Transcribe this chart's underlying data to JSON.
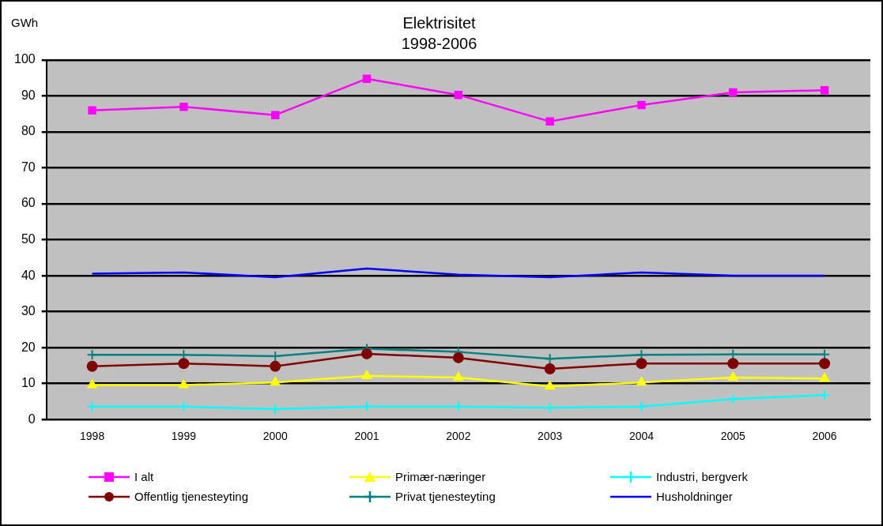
{
  "chart_data": {
    "type": "line",
    "title": "Elektrisitet",
    "subtitle": "1998-2006",
    "ylabel": "GWh",
    "categories": [
      "1998",
      "1999",
      "2000",
      "2001",
      "2002",
      "2003",
      "2004",
      "2005",
      "2006"
    ],
    "series": [
      {
        "name": "I alt",
        "color": "#ff00ff",
        "marker": "square",
        "values": [
          86,
          87,
          84.7,
          94.8,
          90.3,
          82.9,
          87.5,
          91,
          91.6
        ]
      },
      {
        "name": "Primær-næringer",
        "color": "#ffff00",
        "marker": "triangle",
        "values": [
          9.6,
          9.6,
          10.3,
          12.1,
          11.7,
          9.2,
          10.3,
          11.7,
          11.4
        ]
      },
      {
        "name": "Industri, bergverk",
        "color": "#00ffff",
        "marker": "cross",
        "values": [
          3.6,
          3.6,
          2.9,
          3.6,
          3.6,
          3.3,
          3.6,
          5.7,
          6.8
        ]
      },
      {
        "name": "Offentlig tjenesteyting",
        "color": "#800000",
        "marker": "circle",
        "values": [
          14.8,
          15.6,
          14.8,
          18.3,
          17.2,
          14.1,
          15.6,
          15.6,
          15.6
        ]
      },
      {
        "name": "Privat tjenesteyting",
        "color": "#008080",
        "marker": "cross",
        "values": [
          18,
          18,
          17.6,
          19.7,
          18.8,
          16.9,
          18,
          18.1,
          18.1
        ]
      },
      {
        "name": "Husholdninger",
        "color": "#0000ff",
        "marker": "none",
        "values": [
          40.6,
          40.9,
          39.6,
          42,
          40.3,
          39.6,
          40.9,
          40,
          40
        ]
      }
    ],
    "ylim": [
      0,
      100
    ],
    "yticks": [
      0,
      10,
      20,
      30,
      40,
      50,
      60,
      70,
      80,
      90,
      100
    ],
    "grid": "y",
    "legend": "bottom"
  }
}
